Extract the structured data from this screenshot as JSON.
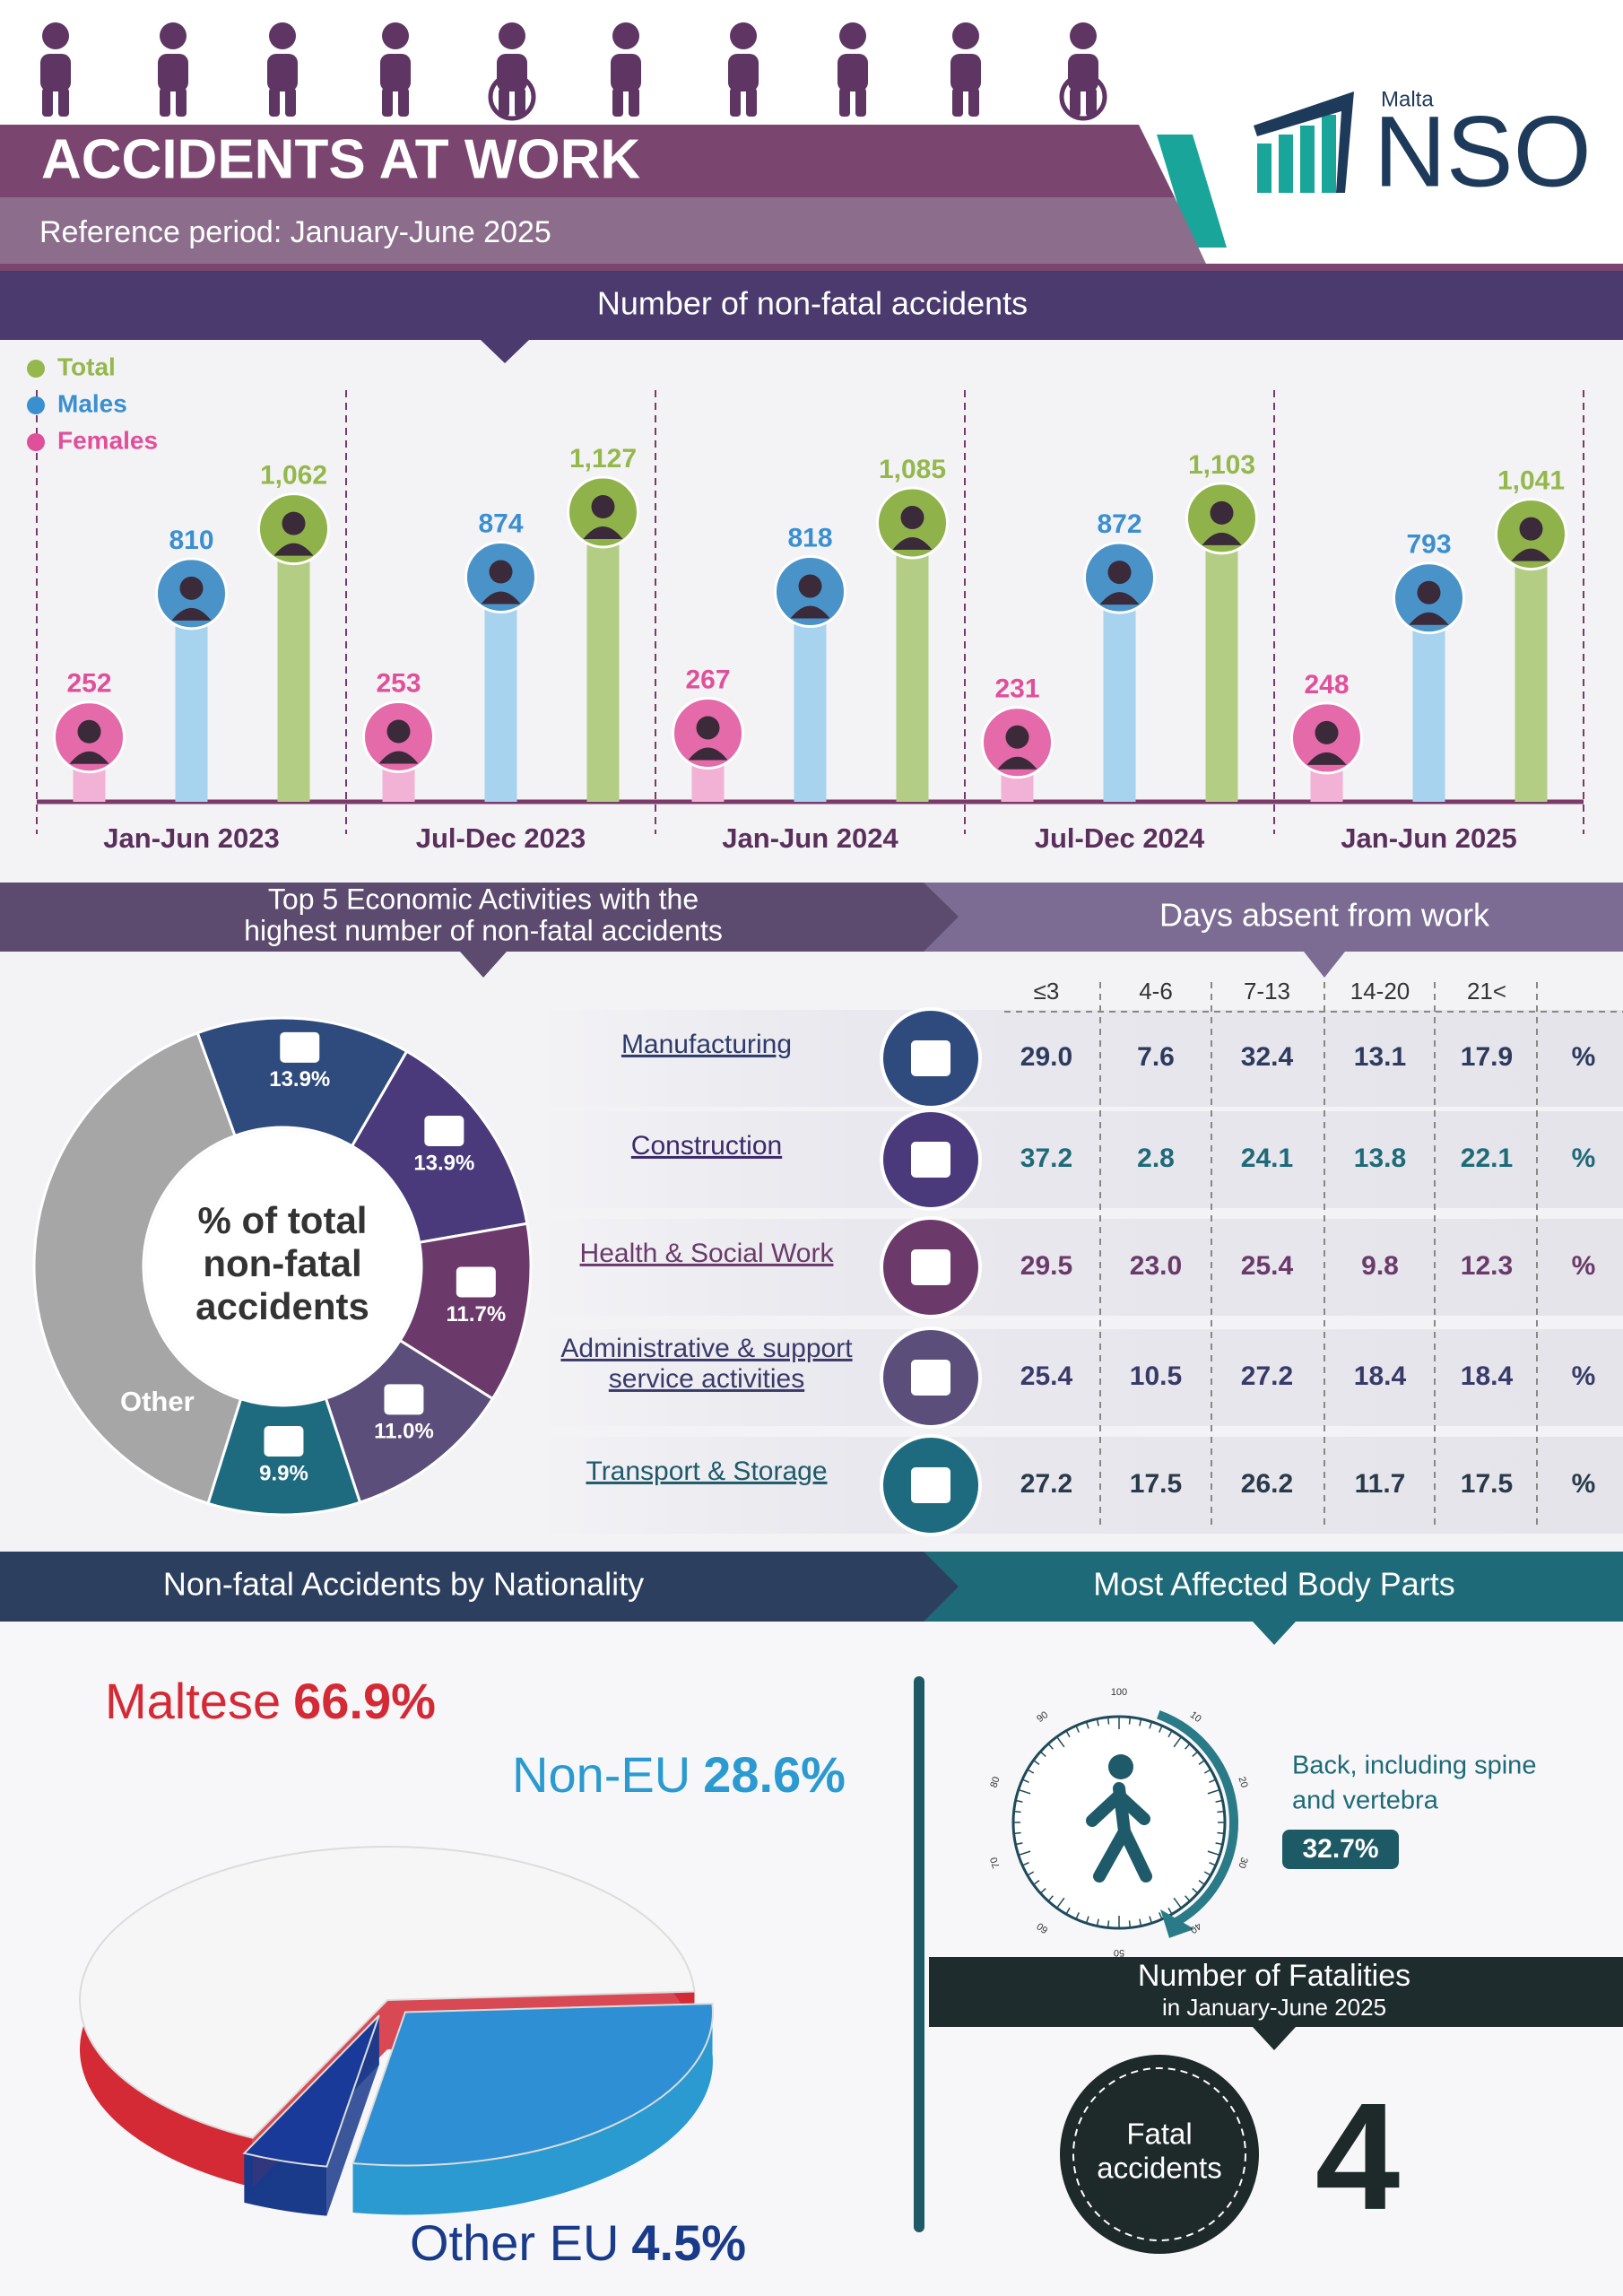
{
  "header": {
    "title": "ACCIDENTS AT WORK",
    "subtitle": "Reference period: January-June 2025",
    "logo_country": "Malta",
    "logo_text": "NSO"
  },
  "chart_data": [
    {
      "type": "bar",
      "title": "Number of non-fatal accidents",
      "categories": [
        "Jan-Jun 2023",
        "Jul-Dec 2023",
        "Jan-Jun 2024",
        "Jul-Dec 2024",
        "Jan-Jun 2025"
      ],
      "series": [
        {
          "name": "Total",
          "color": "#b4cd84",
          "values": [
            1062,
            1127,
            1085,
            1103,
            1041
          ],
          "value_labels": [
            "1,062",
            "1,127",
            "1,085",
            "1,103",
            "1,041"
          ]
        },
        {
          "name": "Males",
          "color": "#a8d3ee",
          "values": [
            810,
            874,
            818,
            872,
            793
          ]
        },
        {
          "name": "Females",
          "color": "#f2b2d6",
          "values": [
            252,
            253,
            267,
            231,
            248
          ]
        }
      ],
      "legend": "top-left"
    },
    {
      "type": "donut",
      "title": [
        "Top 5 Economic Activities with the",
        "highest number of non-fatal accidents"
      ],
      "center_label": [
        "% of total",
        "non-fatal",
        "accidents"
      ],
      "categories": [
        null,
        null,
        null,
        null,
        null,
        "Other"
      ],
      "values": [
        13.9,
        13.9,
        11.7,
        11.0,
        9.9,
        39.6
      ],
      "value_labels": [
        "13.9%",
        "13.9%",
        "11.7%",
        "11.0%",
        "9.9%",
        null
      ],
      "colors": [
        "#2f4a7c",
        "#4a3a7c",
        "#6b3a6b",
        "#5b4e7a",
        "#1e6b80",
        "#a6a6a6"
      ]
    },
    {
      "type": "pie3d",
      "title": "Non-fatal Accidents by Nationality",
      "categories": [
        "Maltese",
        "Non-EU",
        "Other EU"
      ],
      "values": [
        66.9,
        28.6,
        4.5
      ],
      "value_labels": [
        "66.9%",
        "28.6%",
        "4.5%"
      ],
      "colors": [
        "#d42a36",
        "#2a9ad0",
        "#1a3a8a"
      ]
    }
  ],
  "days_absent": {
    "title": "Days absent from work",
    "columns": [
      "≤3",
      "4-6",
      "7-13",
      "14-20",
      "21<"
    ],
    "unit": "%",
    "rows": [
      {
        "activity": [
          "Manufacturing"
        ],
        "cells": [
          "29.0",
          "7.6",
          "32.4",
          "13.1",
          "17.9"
        ]
      },
      {
        "activity": [
          "Construction"
        ],
        "cells": [
          "37.2",
          "2.8",
          "24.1",
          "13.8",
          "22.1"
        ]
      },
      {
        "activity": [
          "Health & Social Work"
        ],
        "cells": [
          "29.5",
          "23.0",
          "25.4",
          "9.8",
          "12.3"
        ]
      },
      {
        "activity": [
          "Administrative & support",
          "service activities"
        ],
        "cells": [
          "25.4",
          "10.5",
          "27.2",
          "18.4",
          "18.4"
        ]
      },
      {
        "activity": [
          "Transport & Storage"
        ],
        "cells": [
          "27.2",
          "17.5",
          "26.2",
          "11.7",
          "17.5"
        ]
      }
    ]
  },
  "body_parts": {
    "title": "Most Affected Body Parts",
    "part": [
      "Back, including spine",
      "and vertebra"
    ],
    "value": "32.7%",
    "dial_labels": [
      100,
      10,
      20,
      30,
      40,
      50,
      60,
      70,
      80,
      90
    ]
  },
  "fatalities": {
    "title": "Number of Fatalities",
    "period": "in January-June 2025",
    "label": [
      "Fatal",
      "accidents"
    ],
    "value": 4
  }
}
